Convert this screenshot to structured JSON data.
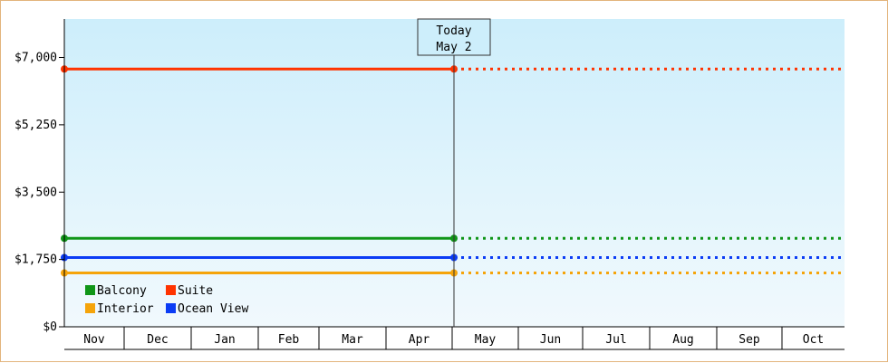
{
  "chart_data": {
    "type": "line",
    "categories": [
      "Nov",
      "Dec",
      "Jan",
      "Feb",
      "Mar",
      "Apr",
      "May",
      "Jun",
      "Jul",
      "Aug",
      "Sep",
      "Oct"
    ],
    "y_ticks": [
      "$0",
      "$1,750",
      "$3,500",
      "$5,250",
      "$7,000"
    ],
    "ylim": [
      0,
      8000
    ],
    "grid": false,
    "legend_position": "bottom-left",
    "today_marker": {
      "line1": "Today",
      "line2": "May 2",
      "date": "May 2"
    },
    "series": [
      {
        "name": "Balcony",
        "color": "#109618",
        "value": 2300,
        "start": "Nov 1",
        "end": "May 2",
        "projection_until": "end of Oct"
      },
      {
        "name": "Suite",
        "color": "#ff3300",
        "value": 6700,
        "start": "Nov 1",
        "end": "May 2",
        "projection_until": "end of Oct"
      },
      {
        "name": "Interior",
        "color": "#f5a40a",
        "value": 1400,
        "start": "Nov 1",
        "end": "May 2",
        "projection_until": "end of Oct"
      },
      {
        "name": "Ocean View",
        "color": "#0b3cf5",
        "value": 1800,
        "start": "Nov 1",
        "end": "May 2",
        "projection_until": "end of Oct"
      }
    ],
    "colors": {
      "background_top": "#cdeefb",
      "background_bottom": "#f1f9fd",
      "axis": "#000000",
      "frame_border": "#e3b47c"
    }
  }
}
